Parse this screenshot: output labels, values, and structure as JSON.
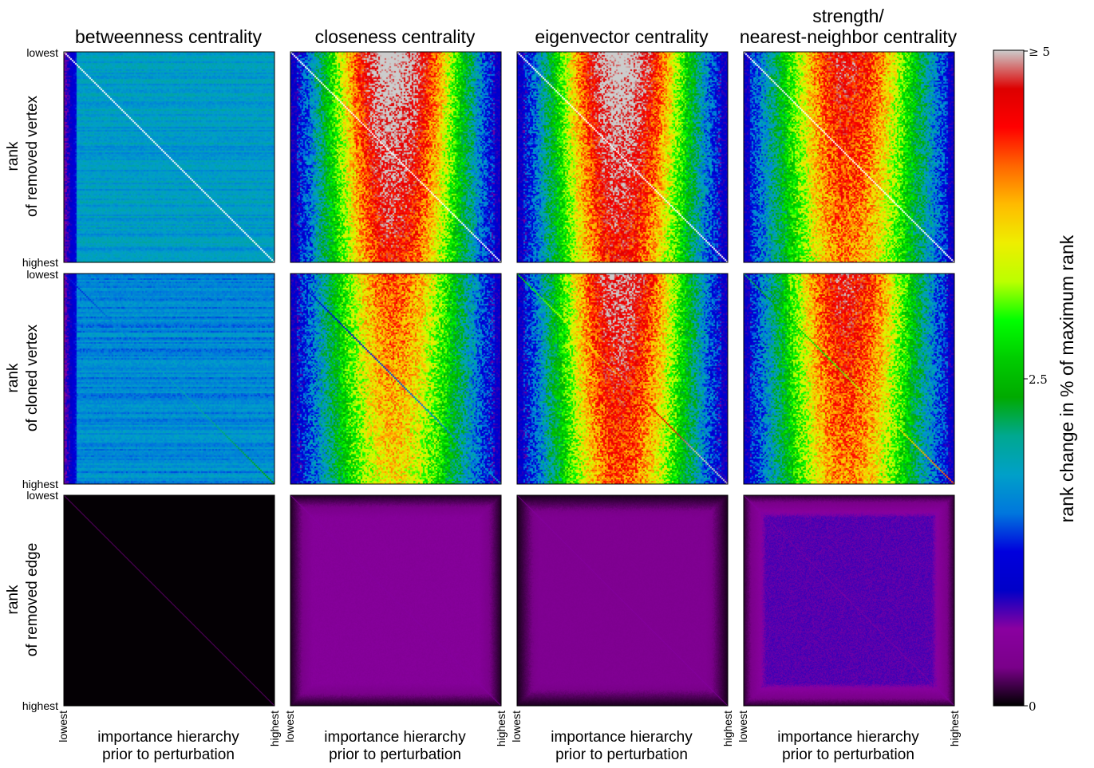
{
  "chart_data": {
    "type": "heatmap",
    "layout": "grid of 3 rows x 4 columns of heatmaps with shared colorbar",
    "columns": [
      {
        "title_line1": "",
        "title_line2": "betweenness centrality"
      },
      {
        "title_line1": "",
        "title_line2": "closeness centrality"
      },
      {
        "title_line1": "",
        "title_line2": "eigenvector centrality"
      },
      {
        "title_line1": "strength/",
        "title_line2": "nearest-neighbor centrality"
      }
    ],
    "rows": [
      {
        "label_line1": "rank",
        "label_line2": "of removed vertex"
      },
      {
        "label_line1": "rank",
        "label_line2": "of cloned vertex"
      },
      {
        "label_line1": "rank",
        "label_line2": "of removed edge"
      }
    ],
    "y_ticks": {
      "top": "lowest",
      "bottom": "highest"
    },
    "x_ticks": {
      "left": "lowest",
      "right": "highest"
    },
    "xlabel_line1": "importance hierarchy",
    "xlabel_line2": "prior to perturbation",
    "colorbar": {
      "label": "rank change in % of maximum rank",
      "min": 0,
      "mid": 2.5,
      "max": 5,
      "tick_min": "0",
      "tick_mid": "2.5",
      "tick_max": "≥ 5",
      "colormap": "nipy_spectral",
      "stops": [
        "#000000",
        "#7a008a",
        "#8a00a0",
        "#0000c8",
        "#0000dd",
        "#0077dd",
        "#00a0c8",
        "#00a890",
        "#00aa00",
        "#00cc00",
        "#00ff00",
        "#bbff00",
        "#eeee00",
        "#ffbb00",
        "#ff6600",
        "#ff0000",
        "#dd0000",
        "#cccccc"
      ]
    },
    "panels": [
      {
        "row": 0,
        "col": 0,
        "pattern": "betweenness",
        "level": 1.75,
        "diagonal_percent": 5,
        "diagonal_color": "white",
        "note": "mostly uniform ~1.75%, low band (~0.5–1%) at lowest importance"
      },
      {
        "row": 0,
        "col": 1,
        "pattern": "hump",
        "peak_percent": 4.5,
        "edge_percent": 1.0,
        "diagonal_percent": 5,
        "diagonal_color": "white"
      },
      {
        "row": 0,
        "col": 2,
        "pattern": "hump",
        "peak_percent": 4.5,
        "edge_percent": 1.0,
        "diagonal_percent": 5,
        "diagonal_color": "white"
      },
      {
        "row": 0,
        "col": 3,
        "pattern": "hump",
        "peak_percent": 4.0,
        "edge_percent": 1.2,
        "diagonal_percent": 5,
        "diagonal_color": "white"
      },
      {
        "row": 1,
        "col": 0,
        "pattern": "betweenness",
        "level": 1.6,
        "diagonal_percent": 2.0,
        "diagonal_color": "mixed",
        "note": "diagonal rises to ~4.5% near highest"
      },
      {
        "row": 1,
        "col": 1,
        "pattern": "hump",
        "peak_percent": 3.6,
        "edge_percent": 1.0,
        "diagonal_percent": 1.5,
        "diagonal_color": "dark"
      },
      {
        "row": 1,
        "col": 2,
        "pattern": "hump",
        "peak_percent": 4.2,
        "edge_percent": 1.0,
        "diagonal_percent": 4.5,
        "diagonal_color": "red upper half"
      },
      {
        "row": 1,
        "col": 3,
        "pattern": "hump",
        "peak_percent": 4.0,
        "edge_percent": 1.1,
        "diagonal_percent": 3.5,
        "diagonal_color": "mixed"
      },
      {
        "row": 2,
        "col": 0,
        "pattern": "edge",
        "level": 0.02,
        "diagonal_percent": 0.3
      },
      {
        "row": 2,
        "col": 1,
        "pattern": "edge",
        "level": 0.5,
        "diagonal_percent": 0.6
      },
      {
        "row": 2,
        "col": 2,
        "pattern": "edge",
        "level": 0.4,
        "diagonal_percent": 0.6
      },
      {
        "row": 2,
        "col": 3,
        "pattern": "edge",
        "level": 0.7,
        "diagonal_percent": 0.6
      }
    ]
  }
}
